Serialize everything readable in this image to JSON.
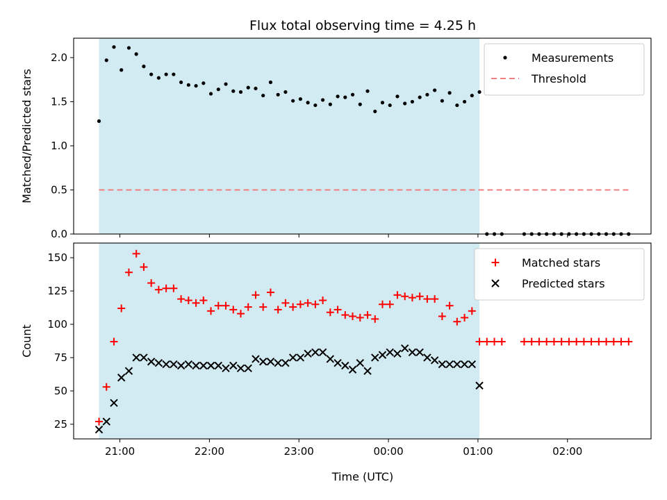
{
  "chart_data": [
    {
      "type": "scatter",
      "title": "Flux total observing time = 4.25 h",
      "xlabel": "",
      "ylabel": "Matched/Predicted stars",
      "ylim": [
        0,
        2.22
      ],
      "yticks": [
        0.0,
        0.5,
        1.0,
        1.5,
        2.0
      ],
      "ytick_labels": [
        "0.0",
        "0.5",
        "1.0",
        "1.5",
        "2.0"
      ],
      "grid": false,
      "legend": "top-right",
      "shaded_span": {
        "from": "20:46",
        "to": "01:01",
        "color": "#add8e6"
      },
      "series": [
        {
          "name": "Measurements",
          "marker": "dot",
          "color": "#000000",
          "points": [
            [
              "20:46",
              1.28
            ],
            [
              "20:51",
              1.97
            ],
            [
              "20:56",
              2.12
            ],
            [
              "21:01",
              1.86
            ],
            [
              "21:06",
              2.11
            ],
            [
              "21:11",
              2.04
            ],
            [
              "21:16",
              1.9
            ],
            [
              "21:21",
              1.81
            ],
            [
              "21:26",
              1.77
            ],
            [
              "21:31",
              1.81
            ],
            [
              "21:36",
              1.81
            ],
            [
              "21:41",
              1.72
            ],
            [
              "21:46",
              1.69
            ],
            [
              "21:51",
              1.68
            ],
            [
              "21:56",
              1.71
            ],
            [
              "22:01",
              1.59
            ],
            [
              "22:06",
              1.64
            ],
            [
              "22:11",
              1.7
            ],
            [
              "22:16",
              1.62
            ],
            [
              "22:21",
              1.61
            ],
            [
              "22:26",
              1.66
            ],
            [
              "22:31",
              1.65
            ],
            [
              "22:36",
              1.57
            ],
            [
              "22:41",
              1.72
            ],
            [
              "22:46",
              1.58
            ],
            [
              "22:51",
              1.61
            ],
            [
              "22:56",
              1.51
            ],
            [
              "23:01",
              1.53
            ],
            [
              "23:06",
              1.49
            ],
            [
              "23:11",
              1.46
            ],
            [
              "23:16",
              1.52
            ],
            [
              "23:21",
              1.47
            ],
            [
              "23:26",
              1.56
            ],
            [
              "23:31",
              1.55
            ],
            [
              "23:36",
              1.58
            ],
            [
              "23:41",
              1.47
            ],
            [
              "23:46",
              1.62
            ],
            [
              "23:51",
              1.39
            ],
            [
              "23:56",
              1.49
            ],
            [
              "00:01",
              1.46
            ],
            [
              "00:06",
              1.56
            ],
            [
              "00:11",
              1.48
            ],
            [
              "00:16",
              1.5
            ],
            [
              "00:21",
              1.55
            ],
            [
              "00:26",
              1.58
            ],
            [
              "00:31",
              1.63
            ],
            [
              "00:36",
              1.51
            ],
            [
              "00:41",
              1.6
            ],
            [
              "00:46",
              1.46
            ],
            [
              "00:51",
              1.5
            ],
            [
              "00:56",
              1.57
            ],
            [
              "01:01",
              1.61
            ],
            [
              "01:06",
              0
            ],
            [
              "01:11",
              0
            ],
            [
              "01:16",
              0
            ],
            [
              "01:31",
              0
            ],
            [
              "01:36",
              0
            ],
            [
              "01:41",
              0
            ],
            [
              "01:46",
              0
            ],
            [
              "01:51",
              0
            ],
            [
              "01:56",
              0
            ],
            [
              "02:01",
              0
            ],
            [
              "02:06",
              0
            ],
            [
              "02:11",
              0
            ],
            [
              "02:16",
              0
            ],
            [
              "02:21",
              0
            ],
            [
              "02:26",
              0
            ],
            [
              "02:31",
              0
            ],
            [
              "02:36",
              0
            ],
            [
              "02:41",
              0
            ]
          ]
        },
        {
          "name": "Threshold",
          "marker": "dashed-line",
          "color": "#f08080",
          "points": [
            [
              "20:46",
              0.5
            ],
            [
              "02:41",
              0.5
            ]
          ]
        }
      ]
    },
    {
      "type": "scatter",
      "title": "",
      "xlabel": "Time (UTC)",
      "ylabel": "Count",
      "ylim": [
        14,
        161
      ],
      "yticks": [
        25,
        50,
        75,
        100,
        125,
        150
      ],
      "ytick_labels": [
        "25",
        "50",
        "75",
        "100",
        "125",
        "150"
      ],
      "xlim": [
        "20:29",
        "02:56"
      ],
      "xticks": [
        "21:00",
        "22:00",
        "23:00",
        "00:00",
        "01:00",
        "02:00"
      ],
      "xtick_labels": [
        "21:00",
        "22:00",
        "23:00",
        "00:00",
        "01:00",
        "02:00"
      ],
      "grid": false,
      "legend": "top-right",
      "shaded_span": {
        "from": "20:46",
        "to": "01:01",
        "color": "#add8e6"
      },
      "series": [
        {
          "name": "Matched stars",
          "marker": "plus",
          "color": "#ff0000",
          "points": [
            [
              "20:46",
              27
            ],
            [
              "20:51",
              53
            ],
            [
              "20:56",
              87
            ],
            [
              "21:01",
              112
            ],
            [
              "21:06",
              139
            ],
            [
              "21:11",
              153
            ],
            [
              "21:16",
              143
            ],
            [
              "21:21",
              131
            ],
            [
              "21:26",
              126
            ],
            [
              "21:31",
              127
            ],
            [
              "21:36",
              127
            ],
            [
              "21:41",
              119
            ],
            [
              "21:46",
              118
            ],
            [
              "21:51",
              116
            ],
            [
              "21:56",
              118
            ],
            [
              "22:01",
              110
            ],
            [
              "22:06",
              114
            ],
            [
              "22:11",
              114
            ],
            [
              "22:16",
              111
            ],
            [
              "22:21",
              108
            ],
            [
              "22:26",
              113
            ],
            [
              "22:31",
              122
            ],
            [
              "22:36",
              113
            ],
            [
              "22:41",
              124
            ],
            [
              "22:46",
              111
            ],
            [
              "22:51",
              116
            ],
            [
              "22:56",
              113
            ],
            [
              "23:01",
              115
            ],
            [
              "23:06",
              116
            ],
            [
              "23:11",
              115
            ],
            [
              "23:16",
              118
            ],
            [
              "23:21",
              109
            ],
            [
              "23:26",
              111
            ],
            [
              "23:31",
              107
            ],
            [
              "23:36",
              106
            ],
            [
              "23:41",
              105
            ],
            [
              "23:46",
              107
            ],
            [
              "23:51",
              104
            ],
            [
              "23:56",
              115
            ],
            [
              "00:01",
              115
            ],
            [
              "00:06",
              122
            ],
            [
              "00:11",
              121
            ],
            [
              "00:16",
              120
            ],
            [
              "00:21",
              121
            ],
            [
              "00:26",
              119
            ],
            [
              "00:31",
              119
            ],
            [
              "00:36",
              106
            ],
            [
              "00:41",
              114
            ],
            [
              "00:46",
              102
            ],
            [
              "00:51",
              105
            ],
            [
              "00:56",
              110
            ],
            [
              "01:01",
              87
            ],
            [
              "01:06",
              87
            ],
            [
              "01:11",
              87
            ],
            [
              "01:16",
              87
            ],
            [
              "01:31",
              87
            ],
            [
              "01:36",
              87
            ],
            [
              "01:41",
              87
            ],
            [
              "01:46",
              87
            ],
            [
              "01:51",
              87
            ],
            [
              "01:56",
              87
            ],
            [
              "02:01",
              87
            ],
            [
              "02:06",
              87
            ],
            [
              "02:11",
              87
            ],
            [
              "02:16",
              87
            ],
            [
              "02:21",
              87
            ],
            [
              "02:26",
              87
            ],
            [
              "02:31",
              87
            ],
            [
              "02:36",
              87
            ],
            [
              "02:41",
              87
            ]
          ]
        },
        {
          "name": "Predicted stars",
          "marker": "x",
          "color": "#000000",
          "points": [
            [
              "20:46",
              21
            ],
            [
              "20:51",
              27
            ],
            [
              "20:56",
              41
            ],
            [
              "21:01",
              60
            ],
            [
              "21:06",
              65
            ],
            [
              "21:11",
              75
            ],
            [
              "21:16",
              75
            ],
            [
              "21:21",
              72
            ],
            [
              "21:26",
              71
            ],
            [
              "21:31",
              70
            ],
            [
              "21:36",
              70
            ],
            [
              "21:41",
              69
            ],
            [
              "21:46",
              70
            ],
            [
              "21:51",
              69
            ],
            [
              "21:56",
              69
            ],
            [
              "22:01",
              69
            ],
            [
              "22:06",
              69
            ],
            [
              "22:11",
              67
            ],
            [
              "22:16",
              69
            ],
            [
              "22:21",
              67
            ],
            [
              "22:26",
              67
            ],
            [
              "22:31",
              74
            ],
            [
              "22:36",
              72
            ],
            [
              "22:41",
              72
            ],
            [
              "22:46",
              71
            ],
            [
              "22:51",
              71
            ],
            [
              "22:56",
              75
            ],
            [
              "23:01",
              75
            ],
            [
              "23:06",
              78
            ],
            [
              "23:11",
              79
            ],
            [
              "23:16",
              79
            ],
            [
              "23:21",
              74
            ],
            [
              "23:26",
              71
            ],
            [
              "23:31",
              69
            ],
            [
              "23:36",
              66
            ],
            [
              "23:41",
              71
            ],
            [
              "23:46",
              65
            ],
            [
              "23:51",
              75
            ],
            [
              "23:56",
              77
            ],
            [
              "00:01",
              79
            ],
            [
              "00:06",
              78
            ],
            [
              "00:11",
              82
            ],
            [
              "00:16",
              79
            ],
            [
              "00:21",
              79
            ],
            [
              "00:26",
              75
            ],
            [
              "00:31",
              73
            ],
            [
              "00:36",
              70
            ],
            [
              "00:41",
              70
            ],
            [
              "00:46",
              70
            ],
            [
              "00:51",
              70
            ],
            [
              "00:56",
              70
            ],
            [
              "01:01",
              54
            ]
          ]
        }
      ]
    }
  ]
}
